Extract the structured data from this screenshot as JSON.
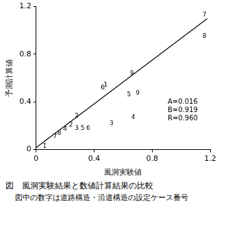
{
  "chart_data": {
    "type": "scatter",
    "x_label": "風洞実験値",
    "y_label": "予測計算値",
    "xlim": [
      0,
      1.2
    ],
    "ylim": [
      0,
      1.2
    ],
    "xticks": [
      0,
      0.4,
      0.8,
      1.2
    ],
    "yticks": [
      0,
      0.4,
      0.8,
      1.2
    ],
    "grid": false,
    "color": "#000000",
    "series": [
      {
        "type": "scatter",
        "marker": "text",
        "x": [
          0.06,
          0.13,
          0.16,
          0.2,
          0.24,
          0.28,
          0.32,
          0.36,
          0.28,
          0.52,
          0.46,
          0.48,
          0.67,
          0.64,
          0.7,
          0.66,
          1.16,
          1.16
        ],
        "values": [
          0.03,
          0.11,
          0.14,
          0.17,
          0.21,
          0.18,
          0.18,
          0.18,
          0.28,
          0.22,
          0.52,
          0.54,
          0.27,
          0.46,
          0.47,
          0.64,
          1.13,
          0.95
        ],
        "point_labels": [
          "1",
          "7",
          "8",
          "4",
          "2",
          "3",
          "5",
          "6",
          "2",
          "3",
          "6",
          "1",
          "4",
          "5",
          "9",
          "9",
          "7",
          "8"
        ]
      },
      {
        "type": "line",
        "line_style": "solid",
        "x": [
          0,
          1.18
        ],
        "values": [
          0.016,
          1.1
        ]
      }
    ],
    "annotations": [
      "A=0.016",
      "B=0.919",
      "R=0.960"
    ],
    "caption": [
      "図　風洞実験結果と数値計算結果の比較",
      "図中の数字は道路構造・沿道構造の設定ケース番号"
    ]
  }
}
